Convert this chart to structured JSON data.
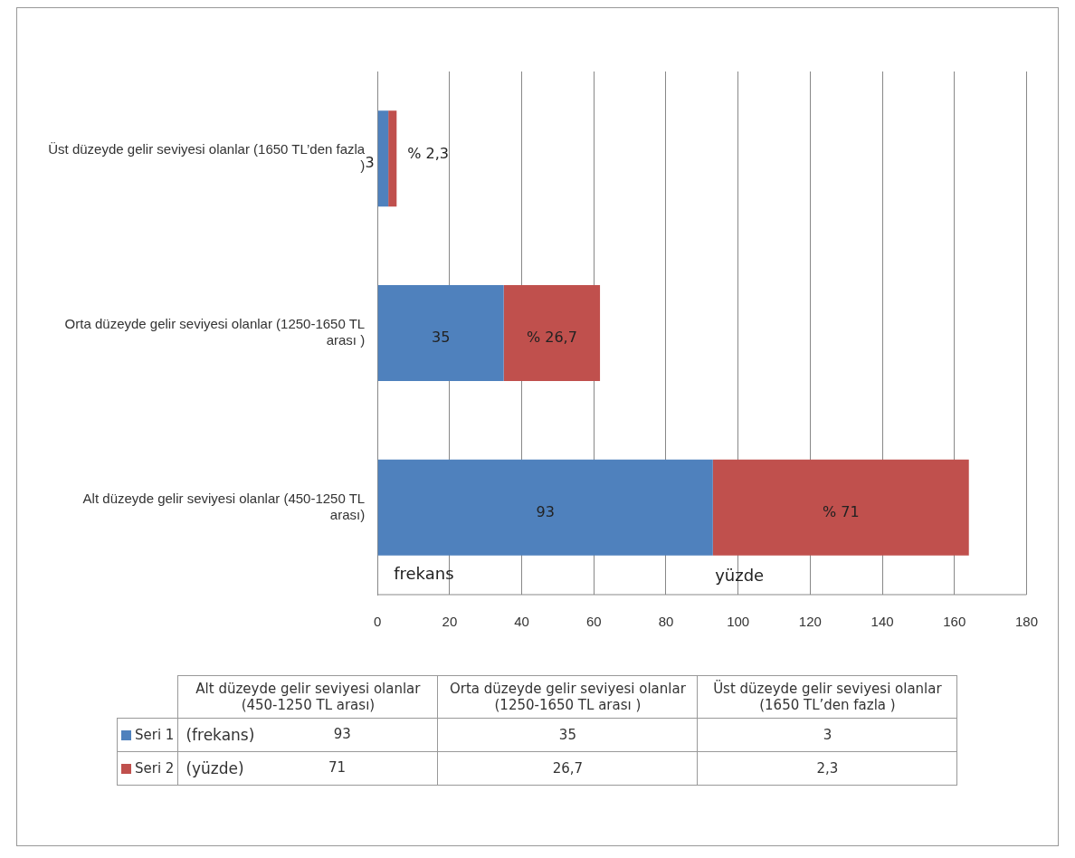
{
  "chart_data": [
    {
      "type": "bar",
      "orientation": "horizontal",
      "stacked": true,
      "categories": [
        "Üst düzeyde gelir seviyesi olanlar (1650 TL’den fazla )",
        "Orta düzeyde gelir seviyesi olanlar (1250-1650 TL arası )",
        "Alt düzeyde gelir seviyesi olanlar (450-1250 TL arası)"
      ],
      "series": [
        {
          "color": "#4f81bd",
          "values": [
            3,
            35,
            93
          ],
          "value_labels": [
            "3",
            "35",
            "93"
          ]
        },
        {
          "color": "#c0504d",
          "values": [
            2.3,
            26.7,
            71
          ],
          "value_labels": [
            "% 2,3",
            "% 26,7",
            "% 71"
          ]
        }
      ],
      "xlim": [
        0,
        180
      ],
      "xticks": [
        0,
        20,
        40,
        60,
        80,
        100,
        120,
        140,
        160,
        180
      ],
      "grid": "x",
      "annotations": [
        "frekans",
        "yüzde"
      ]
    },
    {
      "type": "other",
      "categories": [
        "Alt düzeyde gelir seviyesi olanlar (450-1250 TL arası)",
        "Orta düzeyde gelir seviyesi olanlar (1250-1650 TL arası )",
        "Üst düzeyde gelir seviyesi olanlar (1650 TL’den fazla )"
      ],
      "series": [
        {
          "name": "Seri 1",
          "color": "#4f81bd",
          "values": [
            93,
            35,
            3
          ]
        },
        {
          "name": "Seri 2",
          "color": "#c0504d",
          "values": [
            71,
            26.7,
            2.3
          ],
          "value_labels": [
            "71",
            "26,7",
            "2,3"
          ]
        }
      ],
      "legend": "left",
      "data_labels": true,
      "annotations": [
        "(frekans)",
        "(yüzde)"
      ]
    }
  ]
}
